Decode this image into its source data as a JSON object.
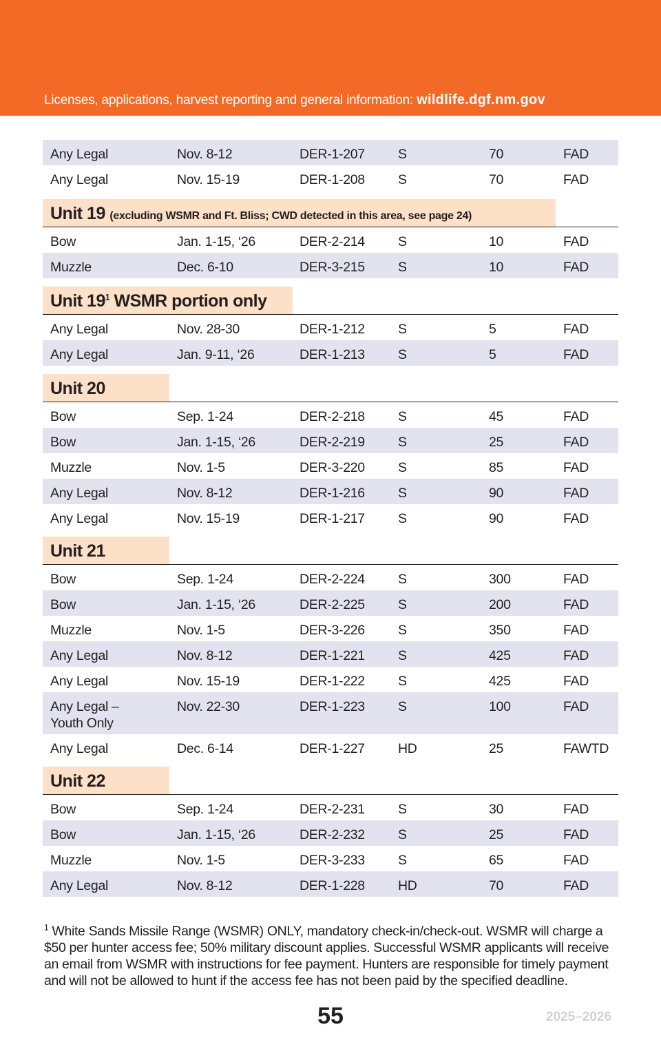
{
  "header": {
    "text": "Licenses, applications, harvest reporting and general information:",
    "url": "wildlife.dgf.nm.gov",
    "color": "#f26a25"
  },
  "top_rows": [
    [
      "Any Legal",
      "Nov. 8-12",
      "DER-1-207",
      "S",
      "70",
      "FAD"
    ],
    [
      "Any Legal",
      "Nov. 15-19",
      "DER-1-208",
      "S",
      "70",
      "FAD"
    ]
  ],
  "units": [
    {
      "title": "Unit 19",
      "note": "(excluding WSMR and Ft. Bliss; CWD detected in this area, see page 24)",
      "rows": [
        [
          "Bow",
          "Jan. 1-15, ‘26",
          "DER-2-214",
          "S",
          "10",
          "FAD"
        ],
        [
          "Muzzle",
          "Dec. 6-10",
          "DER-3-215",
          "S",
          "10",
          "FAD"
        ]
      ]
    },
    {
      "title": "Unit 19",
      "sup": "1",
      "title_rest": "WSMR portion only",
      "rows": [
        [
          "Any Legal",
          "Nov. 28-30",
          "DER-1-212",
          "S",
          "5",
          "FAD"
        ],
        [
          "Any Legal",
          "Jan. 9-11, ‘26",
          "DER-1-213",
          "S",
          "5",
          "FAD"
        ]
      ]
    },
    {
      "title": "Unit 20",
      "rows": [
        [
          "Bow",
          "Sep. 1-24",
          "DER-2-218",
          "S",
          "45",
          "FAD"
        ],
        [
          "Bow",
          "Jan. 1-15, ‘26",
          "DER-2-219",
          "S",
          "25",
          "FAD"
        ],
        [
          "Muzzle",
          "Nov. 1-5",
          "DER-3-220",
          "S",
          "85",
          "FAD"
        ],
        [
          "Any Legal",
          "Nov. 8-12",
          "DER-1-216",
          "S",
          "90",
          "FAD"
        ],
        [
          "Any Legal",
          "Nov. 15-19",
          "DER-1-217",
          "S",
          "90",
          "FAD"
        ]
      ]
    },
    {
      "title": "Unit 21",
      "rows": [
        [
          "Bow",
          "Sep. 1-24",
          "DER-2-224",
          "S",
          "300",
          "FAD"
        ],
        [
          "Bow",
          "Jan. 1-15, ‘26",
          "DER-2-225",
          "S",
          "200",
          "FAD"
        ],
        [
          "Muzzle",
          "Nov. 1-5",
          "DER-3-226",
          "S",
          "350",
          "FAD"
        ],
        [
          "Any Legal",
          "Nov. 8-12",
          "DER-1-221",
          "S",
          "425",
          "FAD"
        ],
        [
          "Any Legal",
          "Nov. 15-19",
          "DER-1-222",
          "S",
          "425",
          "FAD"
        ],
        [
          "Any Legal –",
          "Nov. 22-30",
          "DER-1-223",
          "S",
          "100",
          "FAD"
        ],
        [
          "Any Legal",
          "Dec. 6-14",
          "DER-1-227",
          "HD",
          "25",
          "FAWTD"
        ]
      ],
      "row_extra": "Youth Only"
    },
    {
      "title": "Unit 22",
      "rows": [
        [
          "Bow",
          "Sep. 1-24",
          "DER-2-231",
          "S",
          "30",
          "FAD"
        ],
        [
          "Bow",
          "Jan. 1-15, ‘26",
          "DER-2-232",
          "S",
          "25",
          "FAD"
        ],
        [
          "Muzzle",
          "Nov. 1-5",
          "DER-3-233",
          "S",
          "65",
          "FAD"
        ],
        [
          "Any Legal",
          "Nov. 8-12",
          "DER-1-228",
          "HD",
          "70",
          "FAD"
        ]
      ]
    }
  ],
  "footnote": {
    "marker": "1",
    "text": "White Sands Missile Range (WSMR) ONLY, mandatory check-in/check-out. WSMR will charge a $50 per hunter access fee; 50% military discount applies. Successful WSMR applicants will receive an email from WSMR with instructions for fee payment. Hunters are responsible for timely payment and will not be allowed to hunt if the access fee has not been paid by the specified deadline."
  },
  "page_number": "55",
  "years": "2025–2026"
}
